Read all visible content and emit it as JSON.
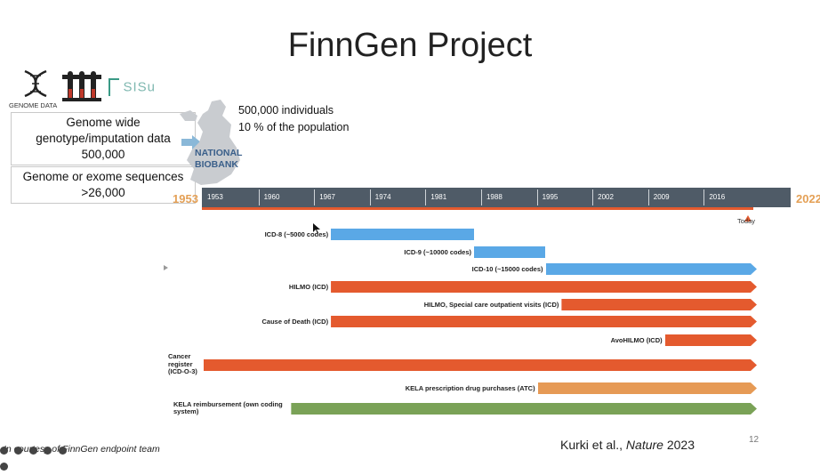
{
  "slide": {
    "title": "FinnGen Project",
    "slide_number": "12",
    "citation_prefix": "Kurki et al., ",
    "citation_journal": "Nature",
    "citation_year": " 2023",
    "footer_note": "In courtesy of FinnGen endpoint team"
  },
  "logos": {
    "genome_label": "GENOME DATA",
    "sisu_label": "SISu"
  },
  "boxes": [
    {
      "line1": "Genome wide",
      "line2": "genotype/imputation data",
      "line3": "500,000"
    },
    {
      "line1": "Genome or exome sequences",
      "line2": ">26,000"
    }
  ],
  "biobank": {
    "label_line1": "NATIONAL",
    "label_line2": "BIOBANK",
    "individuals": "500,000 individuals",
    "population": "10 % of the population"
  },
  "timeline": {
    "start_label": "1953",
    "end_label": "2022",
    "today_label": "Today",
    "ticks": [
      "1953",
      "1960",
      "1967",
      "1974",
      "1981",
      "1988",
      "1995",
      "2002",
      "2009",
      "2016"
    ],
    "colors": {
      "band": "#4f5b67",
      "start_end": "#e4a056",
      "marker": "#e45a2e"
    }
  },
  "registers": [
    {
      "label": "ICD-8 (~5000 codes)",
      "start": 1969,
      "end": 1987,
      "color": "#5aa8e6",
      "arrow": false
    },
    {
      "label": "ICD-9 (~10000 codes)",
      "start": 1987,
      "end": 1996,
      "color": "#5aa8e6",
      "arrow": false
    },
    {
      "label": "ICD-10 (~15000 codes)",
      "start": 1996,
      "end": 2022,
      "color": "#5aa8e6",
      "arrow": true
    },
    {
      "label": "HILMO (ICD)",
      "start": 1969,
      "end": 2022,
      "color": "#e45a2e",
      "arrow": true
    },
    {
      "label": "HILMO, Special care outpatient visits (ICD)",
      "start": 1998,
      "end": 2022,
      "color": "#e45a2e",
      "arrow": true
    },
    {
      "label": "Cause of Death (ICD)",
      "start": 1969,
      "end": 2022,
      "color": "#e45a2e",
      "arrow": true
    },
    {
      "label": "AvoHILMO (ICD)",
      "start": 2011,
      "end": 2022,
      "color": "#e45a2e",
      "arrow": true
    },
    {
      "label_lines": [
        "Cancer",
        "register",
        "(ICD-O-3)"
      ],
      "start": 1953,
      "end": 2022,
      "color": "#e45a2e",
      "arrow": true
    },
    {
      "label": "KELA prescription drug purchases (ATC)",
      "start": 1995,
      "end": 2022,
      "color": "#e69a55",
      "arrow": true
    },
    {
      "label_lines": [
        "KELA reimbursement (own coding",
        "system)"
      ],
      "start": 1964,
      "end": 2022,
      "color": "#7aa257",
      "arrow": true
    }
  ]
}
